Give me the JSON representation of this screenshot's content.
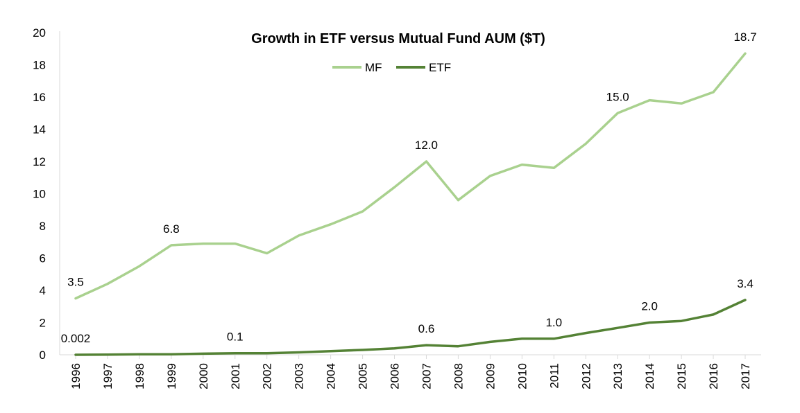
{
  "chart_data": {
    "type": "line",
    "title": "Growth in ETF versus Mutual Fund AUM ($T)",
    "xlabel": "",
    "ylabel": "",
    "ylim": [
      0,
      20
    ],
    "yticks": [
      "0",
      "2",
      "4",
      "6",
      "8",
      "10",
      "12",
      "14",
      "16",
      "18",
      "20"
    ],
    "x": [
      "1996",
      "1997",
      "1998",
      "1999",
      "2000",
      "2001",
      "2002",
      "2003",
      "2004",
      "2005",
      "2006",
      "2007",
      "2008",
      "2009",
      "2010",
      "2011",
      "2012",
      "2013",
      "2014",
      "2015",
      "2016",
      "2017"
    ],
    "series": [
      {
        "name": "MF",
        "color": "#a9d18e",
        "values": [
          3.5,
          4.4,
          5.5,
          6.8,
          6.9,
          6.9,
          6.3,
          7.4,
          8.1,
          8.9,
          10.4,
          12.0,
          9.6,
          11.1,
          11.8,
          11.6,
          13.1,
          15.0,
          15.8,
          15.6,
          16.3,
          18.7
        ],
        "labels": [
          {
            "x": "1996",
            "text": "3.5"
          },
          {
            "x": "1999",
            "text": "6.8"
          },
          {
            "x": "2007",
            "text": "12.0"
          },
          {
            "x": "2013",
            "text": "15.0"
          },
          {
            "x": "2017",
            "text": "18.7"
          }
        ]
      },
      {
        "name": "ETF",
        "color": "#548235",
        "values": [
          0.002,
          0.01,
          0.03,
          0.03,
          0.07,
          0.1,
          0.1,
          0.15,
          0.23,
          0.3,
          0.4,
          0.6,
          0.53,
          0.8,
          1.0,
          1.0,
          1.35,
          1.67,
          2.0,
          2.1,
          2.5,
          3.4
        ],
        "labels": [
          {
            "x": "1996",
            "text": "0.002"
          },
          {
            "x": "2001",
            "text": "0.1"
          },
          {
            "x": "2007",
            "text": "0.6"
          },
          {
            "x": "2011",
            "text": "1.0"
          },
          {
            "x": "2014",
            "text": "2.0"
          },
          {
            "x": "2017",
            "text": "3.4"
          }
        ]
      }
    ],
    "legend_position": "top-center",
    "grid": false
  }
}
